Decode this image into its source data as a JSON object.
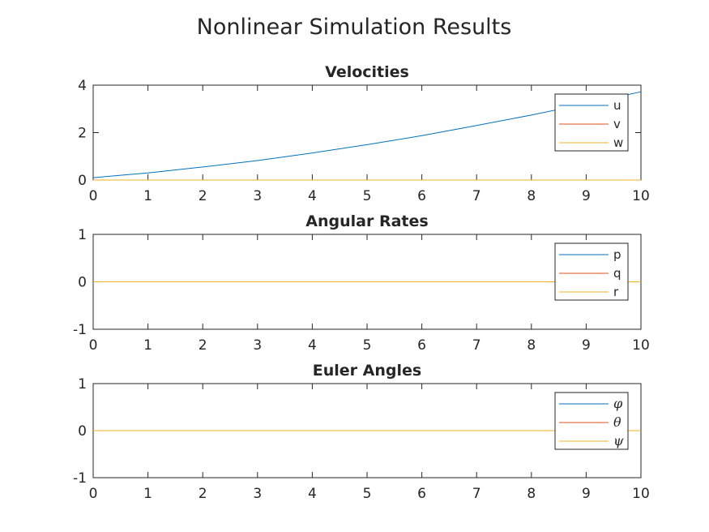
{
  "figure": {
    "title": "Nonlinear Simulation Results"
  },
  "chart_data": [
    {
      "type": "line",
      "title": "Velocities",
      "xlabel": "",
      "ylabel": "",
      "xlim": [
        0,
        10
      ],
      "ylim": [
        0,
        4
      ],
      "xticks": [
        0,
        1,
        2,
        3,
        4,
        5,
        6,
        7,
        8,
        9,
        10
      ],
      "yticks": [
        0,
        2,
        4
      ],
      "ytick_labels": [
        "0",
        "2",
        "4"
      ],
      "grid": false,
      "legend": {
        "placement": "top-right",
        "math": false
      },
      "x": [
        0,
        1,
        2,
        3,
        4,
        5,
        6,
        7,
        8,
        9,
        10
      ],
      "series": [
        {
          "name": "u",
          "color": "#0072BD",
          "values": [
            0.1,
            0.3,
            0.55,
            0.82,
            1.14,
            1.49,
            1.87,
            2.3,
            2.74,
            3.22,
            3.72
          ]
        },
        {
          "name": "v",
          "color": "#D95319",
          "values": [
            0,
            0,
            0,
            0,
            0,
            0,
            0,
            0,
            0,
            0,
            0
          ]
        },
        {
          "name": "w",
          "color": "#EDB120",
          "values": [
            0,
            0,
            0,
            0,
            0,
            0,
            0,
            0,
            0,
            0,
            0
          ]
        }
      ]
    },
    {
      "type": "line",
      "title": "Angular Rates",
      "xlabel": "",
      "ylabel": "",
      "xlim": [
        0,
        10
      ],
      "ylim": [
        -1,
        1
      ],
      "xticks": [
        0,
        1,
        2,
        3,
        4,
        5,
        6,
        7,
        8,
        9,
        10
      ],
      "yticks": [
        -1,
        0,
        1
      ],
      "ytick_labels": [
        "-1",
        "0",
        "1"
      ],
      "grid": false,
      "legend": {
        "placement": "top-right",
        "math": false
      },
      "x": [
        0,
        10
      ],
      "series": [
        {
          "name": "p",
          "color": "#0072BD",
          "values": [
            0,
            0
          ]
        },
        {
          "name": "q",
          "color": "#D95319",
          "values": [
            0,
            0
          ]
        },
        {
          "name": "r",
          "color": "#EDB120",
          "values": [
            0,
            0
          ]
        }
      ]
    },
    {
      "type": "line",
      "title": "Euler Angles",
      "xlabel": "",
      "ylabel": "",
      "xlim": [
        0,
        10
      ],
      "ylim": [
        -1,
        1
      ],
      "xticks": [
        0,
        1,
        2,
        3,
        4,
        5,
        6,
        7,
        8,
        9,
        10
      ],
      "yticks": [
        -1,
        0,
        1
      ],
      "ytick_labels": [
        "-1",
        "0",
        "1"
      ],
      "grid": false,
      "legend": {
        "placement": "top-right",
        "math": true
      },
      "x": [
        0,
        10
      ],
      "series": [
        {
          "name": "φ",
          "color": "#0072BD",
          "values": [
            0,
            0
          ]
        },
        {
          "name": "θ",
          "color": "#D95319",
          "values": [
            0,
            0
          ]
        },
        {
          "name": "ψ",
          "color": "#EDB120",
          "values": [
            0,
            0
          ]
        }
      ]
    }
  ]
}
